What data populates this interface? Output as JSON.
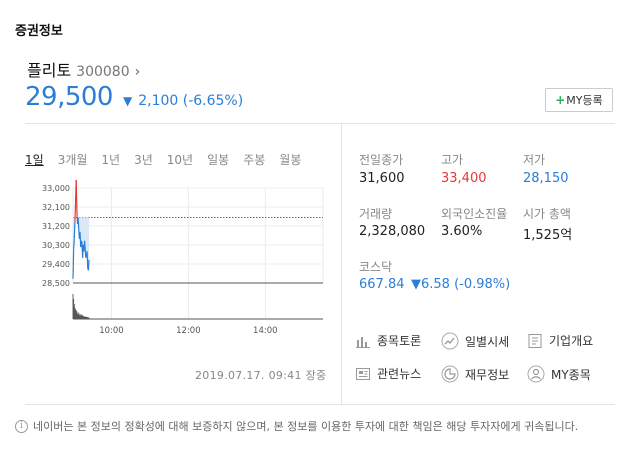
{
  "section_title": "증권정보",
  "stock": {
    "name": "플리토",
    "code": "300080",
    "price": "29,500",
    "change": "2,100 (-6.65%)",
    "my_button": "MY등록"
  },
  "tabs": [
    "1일",
    "3개월",
    "1년",
    "3년",
    "10년",
    "일봉",
    "주봉",
    "월봉"
  ],
  "chart_data": {
    "type": "line",
    "y_ticks": [
      "33,000",
      "32,100",
      "31,200",
      "30,300",
      "29,400",
      "28,500"
    ],
    "x_ticks": [
      "10:00",
      "12:00",
      "14:00"
    ],
    "ylim": [
      28500,
      33000
    ],
    "prev_close": 31600,
    "grid": true,
    "price_series": [
      [
        "09:00",
        28700
      ],
      [
        "09:01",
        30100
      ],
      [
        "09:02",
        30600
      ],
      [
        "09:03",
        31400
      ],
      [
        "09:04",
        32300
      ],
      [
        "09:05",
        33400
      ],
      [
        "09:06",
        32000
      ],
      [
        "09:07",
        31300
      ],
      [
        "09:08",
        31600
      ],
      [
        "09:09",
        31000
      ],
      [
        "09:10",
        30600
      ],
      [
        "09:11",
        30900
      ],
      [
        "09:12",
        30200
      ],
      [
        "09:13",
        30500
      ],
      [
        "09:14",
        30400
      ],
      [
        "09:15",
        29700
      ],
      [
        "09:16",
        30300
      ],
      [
        "09:17",
        30000
      ],
      [
        "09:18",
        30500
      ],
      [
        "09:19",
        30100
      ],
      [
        "09:20",
        29700
      ],
      [
        "09:21",
        29800
      ],
      [
        "09:22",
        30000
      ],
      [
        "09:23",
        29200
      ],
      [
        "09:24",
        29100
      ],
      [
        "09:25",
        29600
      ]
    ],
    "volume_relative": [
      1.0,
      0.8,
      0.6,
      0.45,
      0.38,
      0.35,
      0.3,
      0.22,
      0.18,
      0.26,
      0.15,
      0.2,
      0.14,
      0.18,
      0.12,
      0.16,
      0.1,
      0.12,
      0.09,
      0.1,
      0.08,
      0.09,
      0.07,
      0.08,
      0.06,
      0.05
    ]
  },
  "timestamp": "2019.07.17. 09:41 장중",
  "info": {
    "prev_close_label": "전일종가",
    "prev_close": "31,600",
    "high_label": "고가",
    "high": "33,400",
    "low_label": "저가",
    "low": "28,150",
    "volume_label": "거래량",
    "volume": "2,328,080",
    "foreign_label": "외국인소진율",
    "foreign": "3.60%",
    "mcap_label": "시가 총액",
    "mcap": "1,525억"
  },
  "index": {
    "label": "코스닥",
    "value": "667.84",
    "change": "6.58 (-0.98%)"
  },
  "links": [
    "종목토론",
    "일별시세",
    "기업개요",
    "관련뉴스",
    "재무정보",
    "MY종목"
  ],
  "colors": {
    "up": "#e53935",
    "down": "#2a7ed8",
    "accent_green": "#2bb24c"
  },
  "disclaimer": "네이버는 본 정보의 정확성에 대해 보증하지 않으며, 본 정보를 이용한 투자에 대한 책임은 해당 투자자에게 귀속됩니다."
}
